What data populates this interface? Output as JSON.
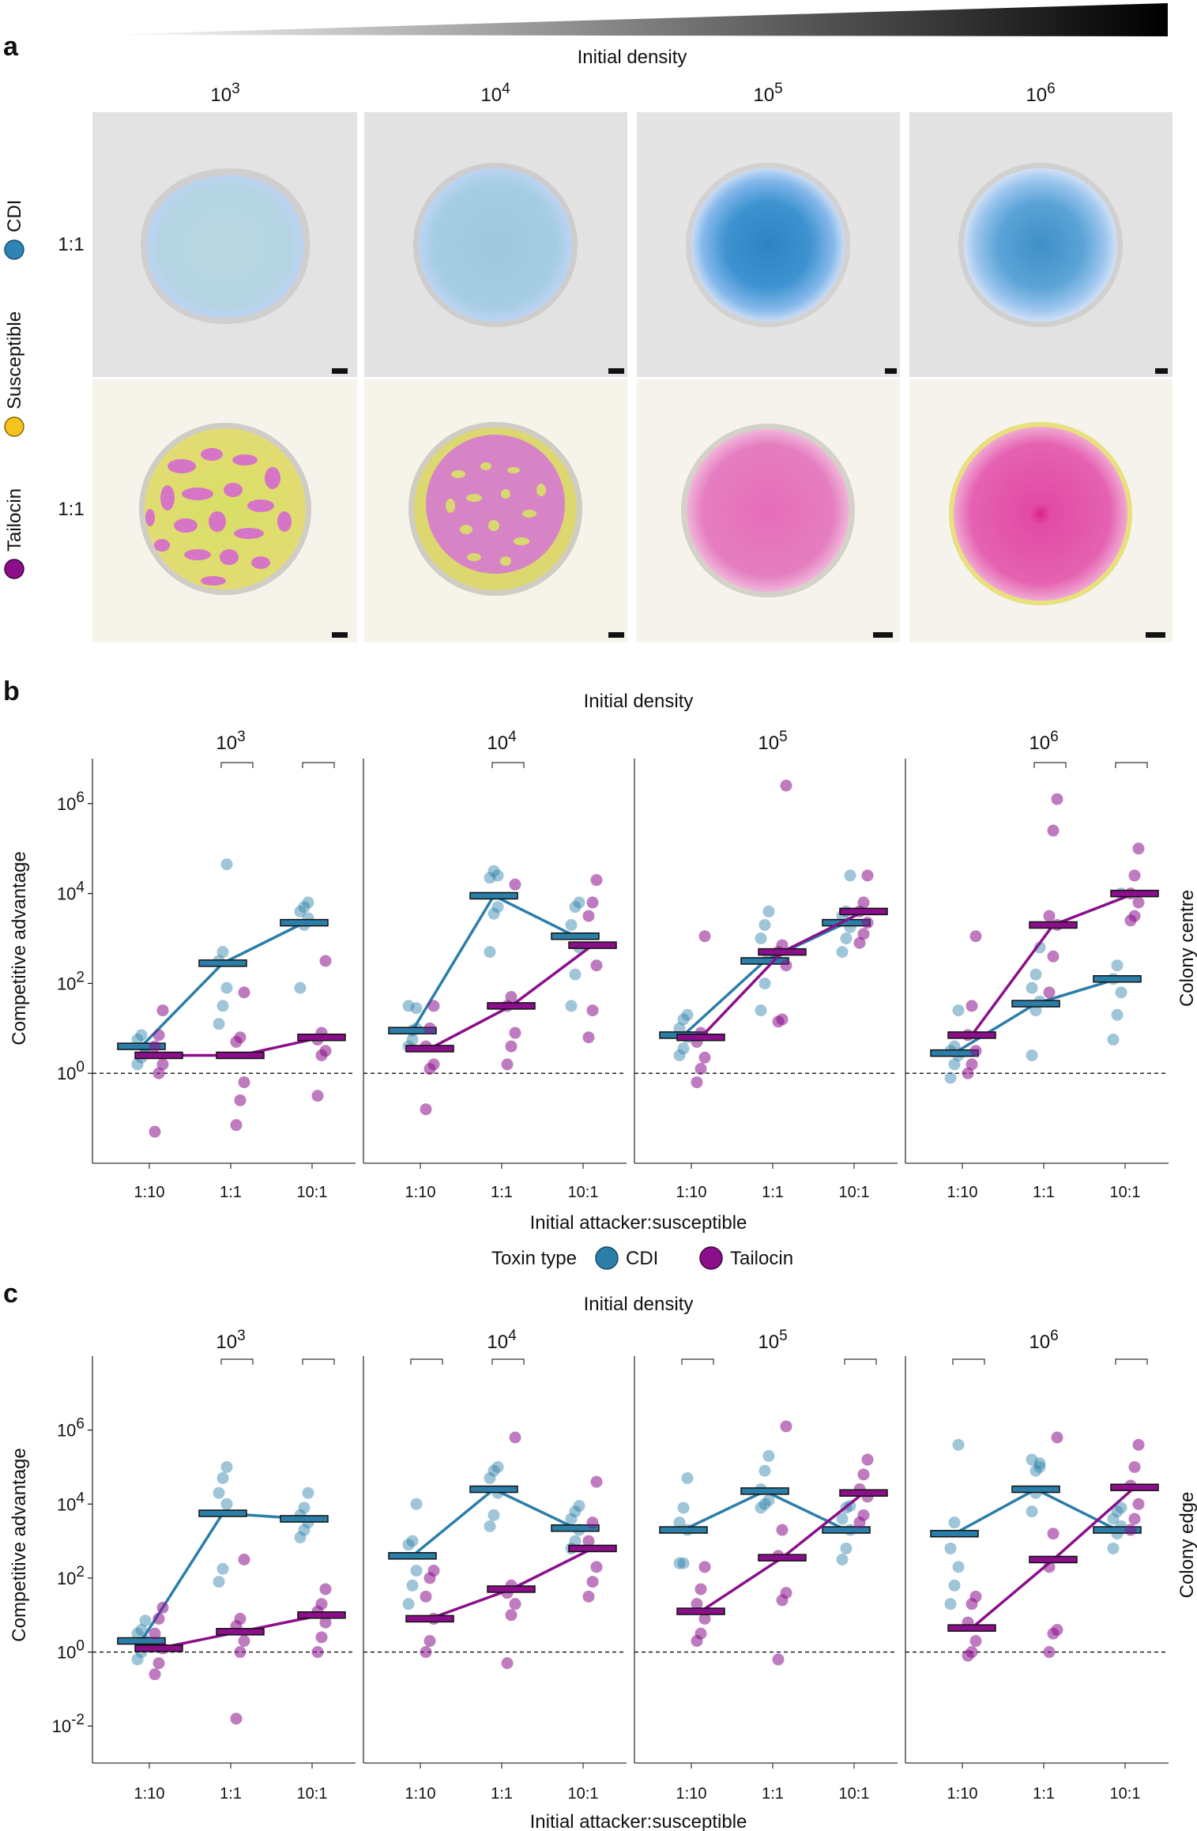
{
  "panel_a": {
    "label": "a",
    "axis_title": "Initial density",
    "density_base": "10",
    "density_exps": [
      "3",
      "4",
      "5",
      "6"
    ],
    "row_ratios": [
      "1:1",
      "1:1"
    ],
    "legend": [
      {
        "label": "CDI",
        "color": "#2e84b5"
      },
      {
        "label": "Susceptible",
        "color": "#f6c21e"
      },
      {
        "label": "Tailocin",
        "color": "#8b0f8a"
      }
    ],
    "colors": {
      "cdi_colony": "#7fb6d9",
      "tailocin_colony": "#e05bb5",
      "susceptible_colony": "#e9e06a"
    }
  },
  "legend": {
    "title": "Toxin type",
    "items": [
      {
        "label": "CDI",
        "color": "#2b7ea8"
      },
      {
        "label": "Tailocin",
        "color": "#8b0f8a"
      }
    ]
  },
  "chart_data": [
    {
      "panel": "b",
      "type": "scatter",
      "title": "Initial density",
      "ylabel": "Competitive advantage",
      "xlabel": "Initial attacker:susceptible",
      "side_label": "Colony centre",
      "ylim_log10": [
        -2,
        7
      ],
      "ytick_exps": [
        "0",
        "2",
        "4",
        "6"
      ],
      "categories": [
        "1:10",
        "1:1",
        "10:1"
      ],
      "density_base": "10",
      "reference_line_log10": 0,
      "subplots": [
        {
          "density_exp": "3",
          "brackets": [
            1,
            2
          ],
          "series": [
            {
              "name": "CDI",
              "color": "#2b7ea8",
              "medians_log10": [
                0.6,
                2.45,
                3.35
              ],
              "points_log10": [
                [
                  0.2,
                  0.35,
                  0.5,
                  0.75,
                  0.85,
                  0.55
                ],
                [
                  1.1,
                  1.5,
                  1.9,
                  2.5,
                  2.7,
                  4.65
                ],
                [
                  1.9,
                  3.3,
                  3.45,
                  3.6,
                  3.7,
                  3.8
                ]
              ]
            },
            {
              "name": "Tailocin",
              "color": "#8b0f8a",
              "medians_log10": [
                0.4,
                0.4,
                0.8
              ],
              "points_log10": [
                [
                  -1.3,
                  0.0,
                  0.2,
                  0.6,
                  0.85,
                  1.4
                ],
                [
                  -1.15,
                  -0.6,
                  -0.2,
                  0.7,
                  0.8,
                  1.8
                ],
                [
                  -0.5,
                  0.4,
                  0.5,
                  0.75,
                  0.9,
                  2.5
                ]
              ]
            }
          ]
        },
        {
          "density_exp": "4",
          "brackets": [
            1
          ],
          "series": [
            {
              "name": "CDI",
              "color": "#2b7ea8",
              "medians_log10": [
                0.95,
                3.95,
                3.05
              ],
              "points_log10": [
                [
                  0.6,
                  0.75,
                  1.0,
                  1.5,
                  0.95,
                  1.45
                ],
                [
                  2.7,
                  3.55,
                  3.7,
                  4.35,
                  4.5,
                  4.4
                ],
                [
                  1.5,
                  2.2,
                  2.8,
                  3.3,
                  3.7,
                  3.8
                ]
              ]
            },
            {
              "name": "Tailocin",
              "color": "#8b0f8a",
              "medians_log10": [
                0.55,
                1.5,
                2.85
              ],
              "points_log10": [
                [
                  -0.8,
                  0.1,
                  0.2,
                  0.6,
                  1.0,
                  1.5
                ],
                [
                  0.2,
                  0.6,
                  0.9,
                  1.5,
                  1.7,
                  4.2
                ],
                [
                  0.8,
                  1.4,
                  2.4,
                  3.5,
                  3.8,
                  4.3
                ]
              ]
            }
          ]
        },
        {
          "density_exp": "5",
          "brackets": [],
          "series": [
            {
              "name": "CDI",
              "color": "#2b7ea8",
              "medians_log10": [
                0.85,
                2.5,
                3.35
              ],
              "points_log10": [
                [
                  0.4,
                  0.55,
                  0.8,
                  1.0,
                  1.2,
                  1.3
                ],
                [
                  1.4,
                  2.0,
                  2.6,
                  3.0,
                  3.3,
                  3.6
                ],
                [
                  2.7,
                  3.0,
                  3.25,
                  3.5,
                  3.6,
                  4.4
                ]
              ]
            },
            {
              "name": "Tailocin",
              "color": "#8b0f8a",
              "medians_log10": [
                0.8,
                2.7,
                3.6
              ],
              "points_log10": [
                [
                  -0.2,
                  0.1,
                  0.35,
                  0.7,
                  0.9,
                  3.05
                ],
                [
                  1.15,
                  1.2,
                  2.4,
                  2.7,
                  2.85,
                  6.4
                ],
                [
                  2.9,
                  3.1,
                  3.35,
                  3.6,
                  3.8,
                  4.4
                ]
              ]
            }
          ]
        },
        {
          "density_exp": "6",
          "brackets": [
            1,
            2
          ],
          "series": [
            {
              "name": "CDI",
              "color": "#2b7ea8",
              "medians_log10": [
                0.45,
                1.55,
                2.1
              ],
              "points_log10": [
                [
                  -0.1,
                  0.2,
                  0.4,
                  0.5,
                  0.6,
                  1.4
                ],
                [
                  0.4,
                  1.4,
                  1.6,
                  1.9,
                  2.2,
                  2.8
                ],
                [
                  0.75,
                  1.3,
                  1.8,
                  2.1,
                  2.4,
                  4.0
                ]
              ]
            },
            {
              "name": "Tailocin",
              "color": "#8b0f8a",
              "medians_log10": [
                0.85,
                3.3,
                4.0
              ],
              "points_log10": [
                [
                  0.0,
                  0.2,
                  0.5,
                  0.85,
                  1.5,
                  3.05
                ],
                [
                  1.8,
                  2.6,
                  3.3,
                  3.5,
                  5.4,
                  6.1
                ],
                [
                  3.4,
                  3.5,
                  3.8,
                  4.0,
                  4.4,
                  5.0
                ]
              ]
            }
          ]
        }
      ]
    },
    {
      "panel": "c",
      "type": "scatter",
      "title": "Initial density",
      "ylabel": "Competitive advantage",
      "xlabel": "Initial attacker:susceptible",
      "side_label": "Colony edge",
      "ylim_log10": [
        -3,
        8
      ],
      "ytick_exps": [
        "-2",
        "0",
        "2",
        "4",
        "6"
      ],
      "categories": [
        "1:10",
        "1:1",
        "10:1"
      ],
      "density_base": "10",
      "reference_line_log10": 0,
      "subplots": [
        {
          "density_exp": "3",
          "brackets": [
            1,
            2
          ],
          "series": [
            {
              "name": "CDI",
              "color": "#2b7ea8",
              "medians_log10": [
                0.3,
                3.75,
                3.6
              ],
              "points_log10": [
                [
                  -0.2,
                  0.0,
                  0.3,
                  0.5,
                  0.6,
                  0.85
                ],
                [
                  1.9,
                  2.25,
                  4.0,
                  4.3,
                  4.7,
                  5.0
                ],
                [
                  3.1,
                  3.3,
                  3.5,
                  3.7,
                  3.9,
                  4.3
                ]
              ]
            },
            {
              "name": "Tailocin",
              "color": "#8b0f8a",
              "medians_log10": [
                0.1,
                0.55,
                1.0
              ],
              "points_log10": [
                [
                  -0.6,
                  -0.3,
                  0.1,
                  0.5,
                  0.9,
                  1.2
                ],
                [
                  -1.8,
                  0.0,
                  0.3,
                  0.7,
                  0.9,
                  2.5
                ],
                [
                  0.0,
                  0.4,
                  0.8,
                  1.1,
                  1.3,
                  1.7
                ]
              ]
            }
          ]
        },
        {
          "density_exp": "4",
          "brackets": [
            0,
            1
          ],
          "series": [
            {
              "name": "CDI",
              "color": "#2b7ea8",
              "medians_log10": [
                2.6,
                4.4,
                3.35
              ],
              "points_log10": [
                [
                  1.3,
                  1.8,
                  2.2,
                  2.9,
                  3.0,
                  4.0
                ],
                [
                  3.4,
                  3.7,
                  4.3,
                  4.7,
                  4.9,
                  5.0
                ],
                [
                  2.8,
                  3.0,
                  3.3,
                  3.6,
                  3.8,
                  3.95
                ]
              ]
            },
            {
              "name": "Tailocin",
              "color": "#8b0f8a",
              "medians_log10": [
                0.9,
                1.7,
                2.8
              ],
              "points_log10": [
                [
                  0.0,
                  0.3,
                  0.9,
                  1.5,
                  2.0,
                  2.2
                ],
                [
                  -0.3,
                  1.0,
                  1.3,
                  1.6,
                  1.8,
                  5.8
                ],
                [
                  1.5,
                  1.9,
                  2.3,
                  3.0,
                  3.5,
                  4.6
                ]
              ]
            }
          ]
        },
        {
          "density_exp": "5",
          "brackets": [
            0,
            2
          ],
          "series": [
            {
              "name": "CDI",
              "color": "#2b7ea8",
              "medians_log10": [
                3.3,
                4.35,
                3.3
              ],
              "points_log10": [
                [
                  2.4,
                  2.4,
                  3.3,
                  3.5,
                  3.9,
                  4.7
                ],
                [
                  3.9,
                  4.0,
                  4.1,
                  4.4,
                  4.9,
                  5.3
                ],
                [
                  2.5,
                  2.8,
                  3.3,
                  3.6,
                  3.9,
                  3.95
                ]
              ]
            },
            {
              "name": "Tailocin",
              "color": "#8b0f8a",
              "medians_log10": [
                1.1,
                2.55,
                4.3
              ],
              "points_log10": [
                [
                  0.3,
                  0.5,
                  0.9,
                  1.3,
                  1.7,
                  2.3
                ],
                [
                  -0.2,
                  1.4,
                  1.6,
                  2.6,
                  3.3,
                  6.1
                ],
                [
                  3.5,
                  3.7,
                  4.2,
                  4.4,
                  4.8,
                  5.2
                ]
              ]
            }
          ]
        },
        {
          "density_exp": "6",
          "brackets": [
            0,
            2
          ],
          "series": [
            {
              "name": "CDI",
              "color": "#2b7ea8",
              "medians_log10": [
                3.2,
                4.4,
                3.3
              ],
              "points_log10": [
                [
                  1.3,
                  1.8,
                  2.3,
                  2.8,
                  3.5,
                  5.6
                ],
                [
                  3.8,
                  4.3,
                  5.1,
                  5.2,
                  4.9,
                  5.0
                ],
                [
                  2.8,
                  3.2,
                  3.4,
                  3.6,
                  3.8,
                  3.9
                ]
              ]
            },
            {
              "name": "Tailocin",
              "color": "#8b0f8a",
              "medians_log10": [
                0.65,
                2.5,
                4.45
              ],
              "points_log10": [
                [
                  -0.1,
                  0.0,
                  0.3,
                  0.8,
                  1.3,
                  1.5
                ],
                [
                  0.0,
                  0.5,
                  0.6,
                  2.3,
                  3.2,
                  5.8
                ],
                [
                  3.3,
                  3.6,
                  4.0,
                  4.5,
                  5.0,
                  5.6
                ]
              ]
            }
          ]
        }
      ]
    }
  ]
}
